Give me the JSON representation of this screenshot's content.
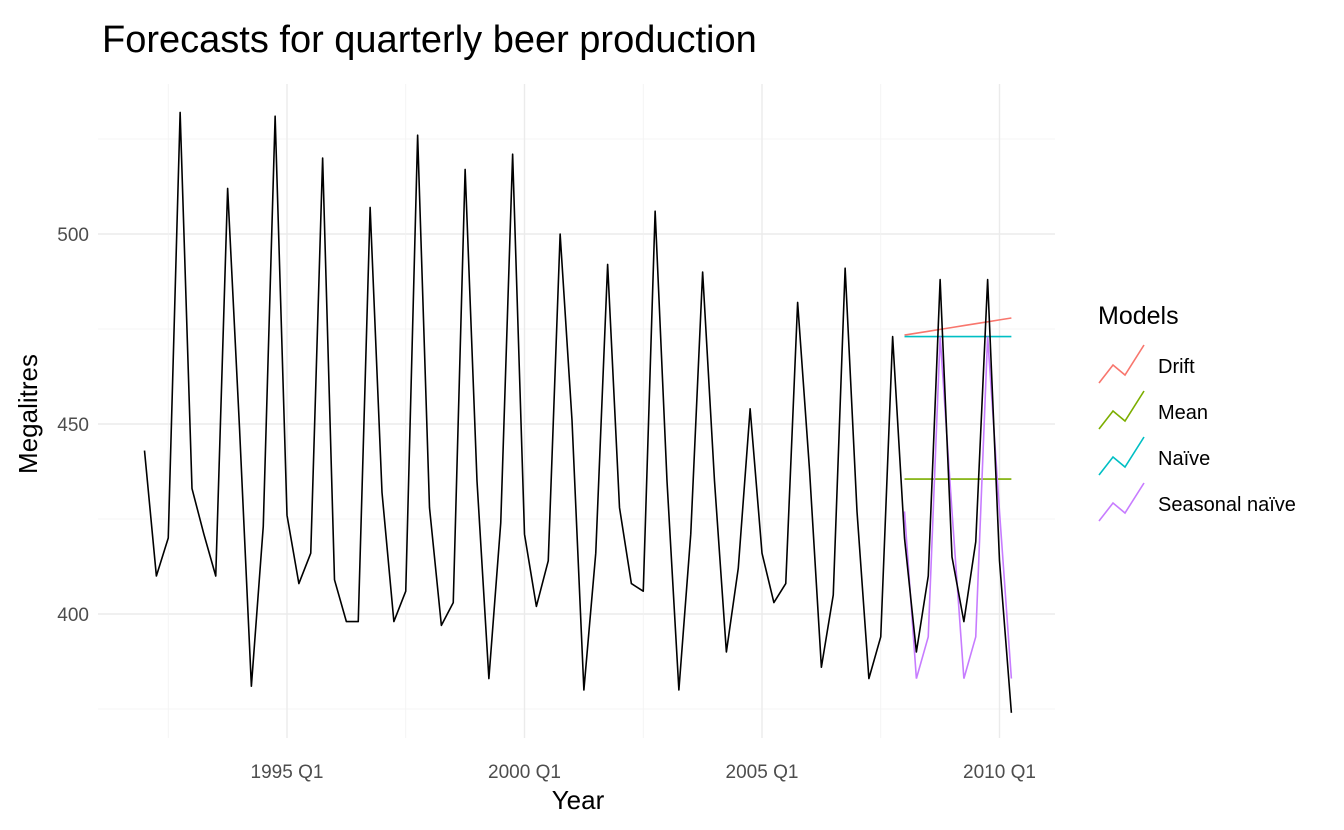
{
  "chart_data": {
    "type": "line",
    "title": "Forecasts for quarterly beer production",
    "xlabel": "Year",
    "ylabel": "Megalitres",
    "x_axis": "quarterly date",
    "x_tick_labels": [
      "1995 Q1",
      "2000 Q1",
      "2005 Q1",
      "2010 Q1"
    ],
    "y_tick_labels": [
      "400",
      "450",
      "500"
    ],
    "ylim": [
      370,
      540
    ],
    "grid": true,
    "legend_title": "Models",
    "legend_position": "right",
    "observed": {
      "x": [
        "1992 Q1",
        "1992 Q2",
        "1992 Q3",
        "1992 Q4",
        "1993 Q1",
        "1993 Q2",
        "1993 Q3",
        "1993 Q4",
        "1994 Q1",
        "1994 Q2",
        "1994 Q3",
        "1994 Q4",
        "1995 Q1",
        "1995 Q2",
        "1995 Q3",
        "1995 Q4",
        "1996 Q1",
        "1996 Q2",
        "1996 Q3",
        "1996 Q4",
        "1997 Q1",
        "1997 Q2",
        "1997 Q3",
        "1997 Q4",
        "1998 Q1",
        "1998 Q2",
        "1998 Q3",
        "1998 Q4",
        "1999 Q1",
        "1999 Q2",
        "1999 Q3",
        "1999 Q4",
        "2000 Q1",
        "2000 Q2",
        "2000 Q3",
        "2000 Q4",
        "2001 Q1",
        "2001 Q2",
        "2001 Q3",
        "2001 Q4",
        "2002 Q1",
        "2002 Q2",
        "2002 Q3",
        "2002 Q4",
        "2003 Q1",
        "2003 Q2",
        "2003 Q3",
        "2003 Q4",
        "2004 Q1",
        "2004 Q2",
        "2004 Q3",
        "2004 Q4",
        "2005 Q1",
        "2005 Q2",
        "2005 Q3",
        "2005 Q4",
        "2006 Q1",
        "2006 Q2",
        "2006 Q3",
        "2006 Q4",
        "2007 Q1",
        "2007 Q2",
        "2007 Q3",
        "2007 Q4",
        "2008 Q1",
        "2008 Q2",
        "2008 Q3",
        "2008 Q4",
        "2009 Q1",
        "2009 Q2",
        "2009 Q3",
        "2009 Q4",
        "2010 Q1",
        "2010 Q2"
      ],
      "values": [
        443,
        410,
        420,
        532,
        433,
        421,
        410,
        512,
        449,
        381,
        423,
        531,
        426,
        408,
        416,
        520,
        409,
        398,
        398,
        507,
        432,
        398,
        406,
        526,
        428,
        397,
        403,
        517,
        435,
        383,
        424,
        521,
        421,
        402,
        414,
        500,
        451,
        380,
        416,
        492,
        428,
        408,
        406,
        506,
        435,
        380,
        421,
        490,
        435,
        390,
        412,
        454,
        416,
        403,
        408,
        482,
        438,
        386,
        405,
        491,
        427,
        383,
        394,
        473,
        420,
        390,
        410,
        488,
        415,
        398,
        419,
        488,
        414,
        374
      ],
      "color": "#000000"
    },
    "forecast_x": [
      "2008 Q1",
      "2008 Q2",
      "2008 Q3",
      "2008 Q4",
      "2009 Q1",
      "2009 Q2",
      "2009 Q3",
      "2009 Q4",
      "2010 Q1",
      "2010 Q2"
    ],
    "series": [
      {
        "name": "Drift",
        "color": "#F8766D",
        "values": [
          473.4,
          473.9,
          474.4,
          474.9,
          475.4,
          475.9,
          476.4,
          476.9,
          477.4,
          477.9
        ]
      },
      {
        "name": "Mean",
        "color": "#7CAE00",
        "values": [
          435.5,
          435.5,
          435.5,
          435.5,
          435.5,
          435.5,
          435.5,
          435.5,
          435.5,
          435.5
        ]
      },
      {
        "name": "Naïve",
        "color": "#00BFC4",
        "values": [
          473,
          473,
          473,
          473,
          473,
          473,
          473,
          473,
          473,
          473
        ]
      },
      {
        "name": "Seasonal naïve",
        "color": "#C77CFF",
        "values": [
          427,
          383,
          394,
          473,
          427,
          383,
          394,
          473,
          427,
          383
        ]
      }
    ]
  }
}
